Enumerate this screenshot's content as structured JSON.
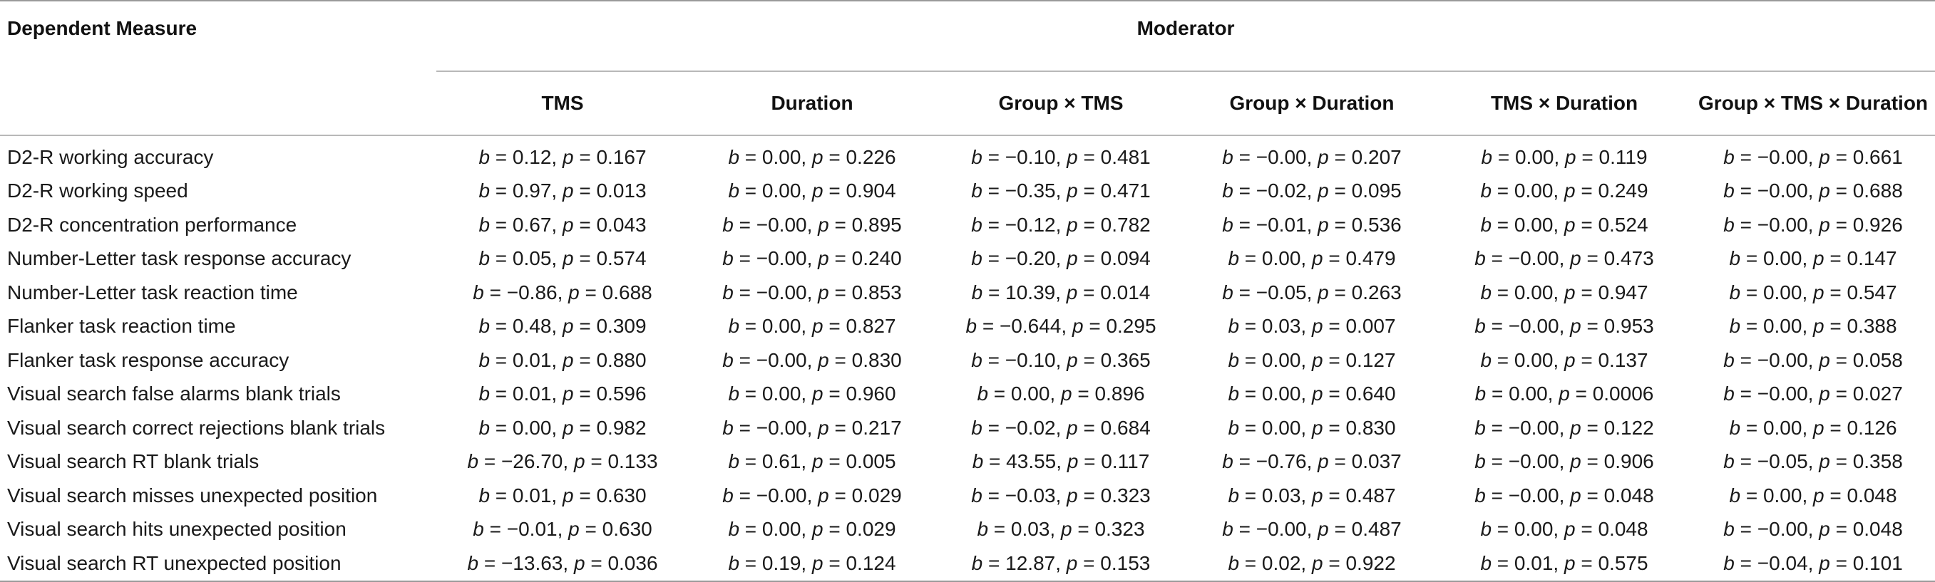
{
  "header": {
    "dependent_measure": "Dependent Measure",
    "moderator": "Moderator",
    "columns": [
      "TMS",
      "Duration",
      "Group × TMS",
      "Group × Duration",
      "TMS × Duration",
      "Group × TMS × Duration"
    ]
  },
  "rows": [
    {
      "measure": "D2-R working accuracy",
      "cells": [
        [
          "= 0.12,",
          "= 0.167"
        ],
        [
          "= 0.00,",
          "= 0.226"
        ],
        [
          "= −0.10,",
          "= 0.481"
        ],
        [
          "= −0.00,",
          "= 0.207"
        ],
        [
          "= 0.00,",
          "= 0.119"
        ],
        [
          "= −0.00,",
          "= 0.661"
        ]
      ]
    },
    {
      "measure": "D2-R working speed",
      "cells": [
        [
          "= 0.97,",
          "= 0.013"
        ],
        [
          "= 0.00,",
          "= 0.904"
        ],
        [
          "= −0.35,",
          "= 0.471"
        ],
        [
          "= −0.02,",
          "= 0.095"
        ],
        [
          "= 0.00,",
          "= 0.249"
        ],
        [
          "= −0.00,",
          "= 0.688"
        ]
      ]
    },
    {
      "measure": "D2-R concentration performance",
      "cells": [
        [
          "= 0.67,",
          "= 0.043"
        ],
        [
          "= −0.00,",
          "= 0.895"
        ],
        [
          "= −0.12,",
          "= 0.782"
        ],
        [
          "= −0.01,",
          "= 0.536"
        ],
        [
          "= 0.00,",
          "= 0.524"
        ],
        [
          "= −0.00,",
          "= 0.926"
        ]
      ]
    },
    {
      "measure": "Number-Letter task response accuracy",
      "cells": [
        [
          "= 0.05,",
          "= 0.574"
        ],
        [
          "= −0.00,",
          "= 0.240"
        ],
        [
          "= −0.20,",
          "= 0.094"
        ],
        [
          "= 0.00,",
          "= 0.479"
        ],
        [
          "= −0.00,",
          "= 0.473"
        ],
        [
          "= 0.00,",
          "= 0.147"
        ]
      ]
    },
    {
      "measure": "Number-Letter task reaction time",
      "cells": [
        [
          "= −0.86,",
          "= 0.688"
        ],
        [
          "= −0.00,",
          "= 0.853"
        ],
        [
          "= 10.39,",
          "= 0.014"
        ],
        [
          "= −0.05,",
          "= 0.263"
        ],
        [
          "= 0.00,",
          "= 0.947"
        ],
        [
          "= 0.00,",
          "= 0.547"
        ]
      ]
    },
    {
      "measure": "Flanker task reaction time",
      "cells": [
        [
          "= 0.48,",
          "= 0.309"
        ],
        [
          "= 0.00,",
          "= 0.827"
        ],
        [
          "= −0.644,",
          "= 0.295"
        ],
        [
          "= 0.03,",
          "= 0.007"
        ],
        [
          "= −0.00,",
          "= 0.953"
        ],
        [
          "= 0.00,",
          "= 0.388"
        ]
      ]
    },
    {
      "measure": "Flanker task response accuracy",
      "cells": [
        [
          "= 0.01,",
          "= 0.880"
        ],
        [
          "= −0.00,",
          "= 0.830"
        ],
        [
          "= −0.10,",
          "= 0.365"
        ],
        [
          "= 0.00,",
          "= 0.127"
        ],
        [
          "= 0.00,",
          "= 0.137"
        ],
        [
          "= −0.00,",
          "= 0.058"
        ]
      ]
    },
    {
      "measure": "Visual search false alarms blank trials",
      "cells": [
        [
          "= 0.01,",
          "= 0.596"
        ],
        [
          "= 0.00,",
          "= 0.960"
        ],
        [
          "= 0.00,",
          "= 0.896"
        ],
        [
          "= 0.00,",
          "= 0.640"
        ],
        [
          "= 0.00,",
          "= 0.0006"
        ],
        [
          "= −0.00,",
          "= 0.027"
        ]
      ]
    },
    {
      "measure": "Visual search correct rejections blank trials",
      "cells": [
        [
          "= 0.00,",
          "= 0.982"
        ],
        [
          "= −0.00,",
          "= 0.217"
        ],
        [
          "= −0.02,",
          "= 0.684"
        ],
        [
          "= 0.00,",
          "= 0.830"
        ],
        [
          "= −0.00,",
          "= 0.122"
        ],
        [
          "= 0.00,",
          "= 0.126"
        ]
      ]
    },
    {
      "measure": "Visual search RT blank trials",
      "cells": [
        [
          "= −26.70,",
          "= 0.133"
        ],
        [
          "= 0.61,",
          "= 0.005"
        ],
        [
          "= 43.55,",
          "= 0.117"
        ],
        [
          "= −0.76,",
          "= 0.037"
        ],
        [
          "= −0.00,",
          "= 0.906"
        ],
        [
          "= −0.05,",
          "= 0.358"
        ]
      ]
    },
    {
      "measure": "Visual search misses unexpected position",
      "cells": [
        [
          "= 0.01,",
          "= 0.630"
        ],
        [
          "= −0.00,",
          "= 0.029"
        ],
        [
          "= −0.03,",
          "= 0.323"
        ],
        [
          "= 0.03,",
          "= 0.487"
        ],
        [
          "= −0.00,",
          "= 0.048"
        ],
        [
          "= 0.00,",
          "= 0.048"
        ]
      ]
    },
    {
      "measure": "Visual search hits unexpected position",
      "cells": [
        [
          "= −0.01,",
          "= 0.630"
        ],
        [
          "= 0.00,",
          "= 0.029"
        ],
        [
          "= 0.03,",
          "= 0.323"
        ],
        [
          "= −0.00,",
          "= 0.487"
        ],
        [
          "= 0.00,",
          "= 0.048"
        ],
        [
          "= −0.00,",
          "= 0.048"
        ]
      ]
    },
    {
      "measure": "Visual search RT unexpected position",
      "cells": [
        [
          "= −13.63,",
          "= 0.036"
        ],
        [
          "= 0.19,",
          "= 0.124"
        ],
        [
          "= 12.87,",
          "= 0.153"
        ],
        [
          "= 0.02,",
          "= 0.922"
        ],
        [
          "= 0.01,",
          "= 0.575"
        ],
        [
          "= −0.04,",
          "= 0.101"
        ]
      ]
    }
  ]
}
